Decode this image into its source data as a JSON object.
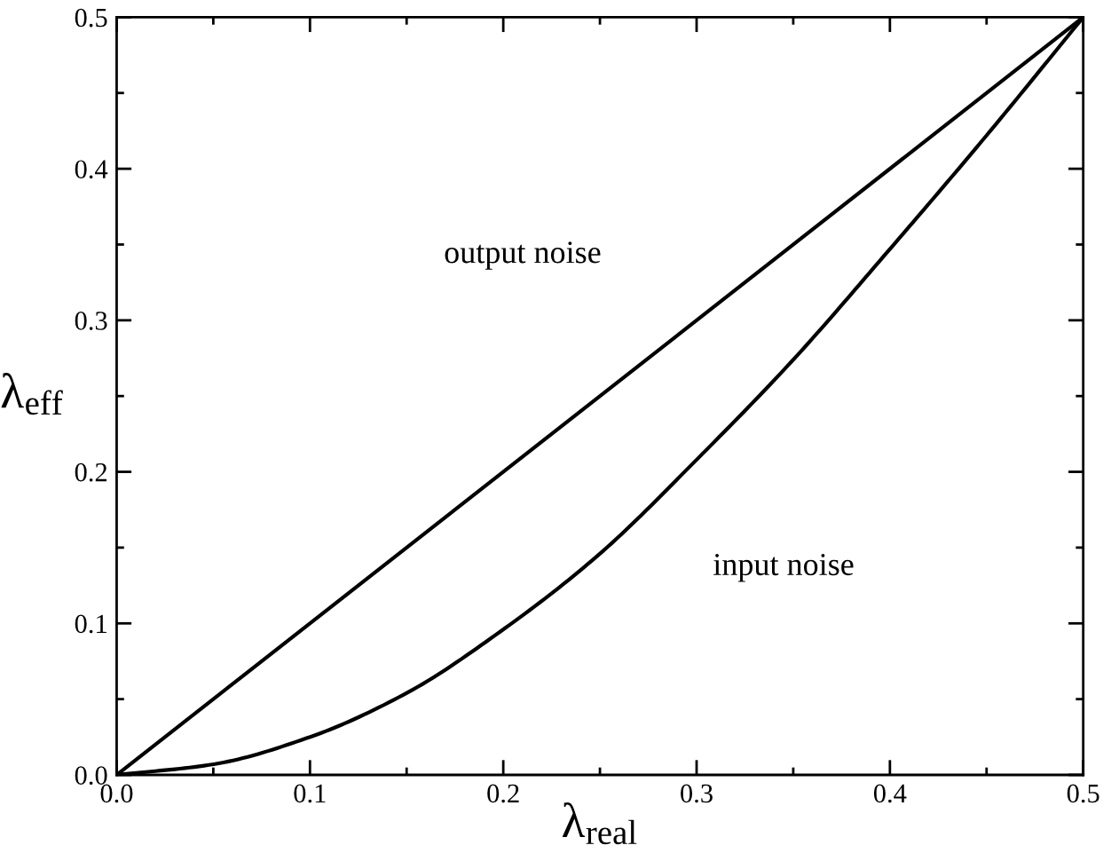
{
  "chart_data": {
    "type": "line",
    "xlabel": "λ$_{real}$",
    "ylabel": "λ$_{eff}$",
    "xlim": [
      0,
      0.5
    ],
    "ylim": [
      0,
      0.5
    ],
    "xticks": [
      {
        "value": 0,
        "label": "0.0"
      },
      0.1,
      0.2,
      0.3,
      0.4,
      0.5
    ],
    "yticks": [
      {
        "value": 0,
        "label": "0.0"
      },
      0.1,
      0.2,
      0.3,
      0.4,
      0.5
    ],
    "grid": false,
    "legend": false,
    "marker": "none",
    "line_style": "solid",
    "series": [
      {
        "color": "#000000",
        "x": [
          0,
          0.5
        ],
        "values": [
          0,
          0.5
        ]
      },
      {
        "color": "#000000",
        "x": [
          0,
          0.05,
          0.1,
          0.15,
          0.2,
          0.25,
          0.3,
          0.35,
          0.4,
          0.45,
          0.5
        ],
        "values": [
          0,
          0.007,
          0.025,
          0.054,
          0.096,
          0.146,
          0.208,
          0.274,
          0.347,
          0.422,
          0.5
        ]
      }
    ],
    "annotations": [
      "output noise",
      "input noise"
    ]
  }
}
